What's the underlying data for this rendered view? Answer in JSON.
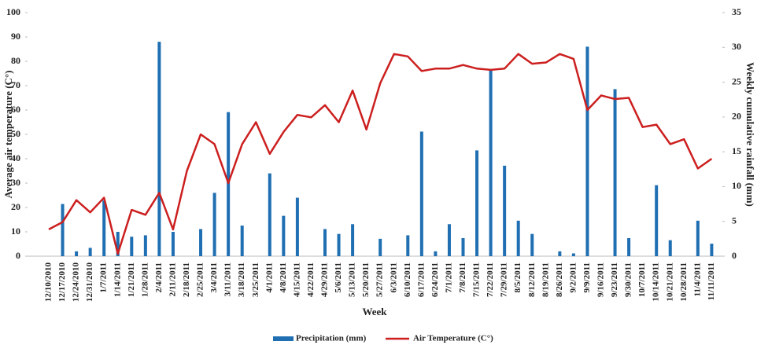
{
  "chart_data": {
    "type": "combo",
    "xlabel": "Week",
    "ylabel": "Average air temperature (C°)",
    "y2label": "Weekly cumulative rainfall (mm)",
    "categories": [
      "12/10/2010",
      "12/17/2010",
      "12/24/2010",
      "12/31/2010",
      "1/7/2011",
      "1/14/2011",
      "1/21/2011",
      "1/28/2011",
      "2/4/2011",
      "2/11/2011",
      "2/18/2011",
      "2/25/2011",
      "3/4/2011",
      "3/11/2011",
      "3/18/2011",
      "3/25/2011",
      "4/1/2011",
      "4/8/2011",
      "4/15/2011",
      "4/22/2011",
      "4/29/2011",
      "5/6/2011",
      "5/13/2011",
      "5/20/2011",
      "5/27/2011",
      "6/3/2011",
      "6/10/2011",
      "6/17/2011",
      "6/24/2011",
      "7/1/2011",
      "7/8/2011",
      "7/15/2011",
      "7/22/2011",
      "7/29/2011",
      "8/5/2011",
      "8/12/2011",
      "8/19/2011",
      "8/26/2011",
      "9/2/2011",
      "9/9/2011",
      "9/16/2011",
      "9/23/2011",
      "9/30/2011",
      "10/7/2011",
      "10/14/2011",
      "10/21/2011",
      "10/28/2011",
      "11/4/2011",
      "11/11/2011"
    ],
    "series": [
      {
        "name": "Precipitation (mm)",
        "type": "bar",
        "axis": "y2",
        "color": "#1f6fb2",
        "values": [
          0,
          7.5,
          0.7,
          1.2,
          8.0,
          3.5,
          2.8,
          3.0,
          30.8,
          3.5,
          0,
          3.9,
          9.1,
          20.7,
          4.4,
          0,
          11.9,
          5.8,
          8.4,
          0,
          3.9,
          3.2,
          4.6,
          0,
          2.5,
          0,
          3.0,
          17.9,
          0.7,
          4.6,
          2.6,
          15.2,
          26.8,
          13.0,
          5.1,
          3.2,
          0,
          0.7,
          0.4,
          30.1,
          0,
          24.0,
          2.6,
          0,
          10.2,
          2.3,
          0,
          5.1,
          1.8
        ]
      },
      {
        "name": "Air Temperature (C°)",
        "type": "line",
        "color": "#cc1f1f",
        "values": [
          11,
          14,
          23,
          18,
          24,
          1,
          19,
          17,
          26,
          11,
          35,
          50,
          46,
          30,
          46,
          55,
          42,
          51,
          58,
          57,
          62,
          55,
          68,
          52,
          71,
          83,
          82,
          76,
          77,
          77,
          78.5,
          77,
          76.5,
          77,
          83,
          79,
          79.5,
          83,
          81,
          60,
          66,
          64.5,
          65,
          53,
          54,
          46,
          48,
          36,
          40
        ]
      }
    ],
    "ylim": [
      0,
      100
    ],
    "yticks": [
      0,
      10,
      20,
      30,
      40,
      50,
      60,
      70,
      80,
      90,
      100
    ],
    "y2lim": [
      0,
      35
    ],
    "y2ticks": [
      0,
      5,
      10,
      15,
      20,
      25,
      30,
      35
    ],
    "grid": false
  }
}
